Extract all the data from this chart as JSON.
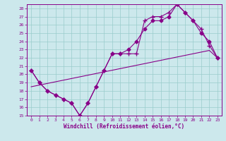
{
  "xlabel": "Windchill (Refroidissement éolien,°C)",
  "bg_color": "#cce8ec",
  "line_color": "#880088",
  "grid_color": "#99cccc",
  "xlim": [
    -0.5,
    23.5
  ],
  "ylim": [
    15,
    28.5
  ],
  "xticks": [
    0,
    1,
    2,
    3,
    4,
    5,
    6,
    7,
    8,
    9,
    10,
    11,
    12,
    13,
    14,
    15,
    16,
    17,
    18,
    19,
    20,
    21,
    22,
    23
  ],
  "yticks": [
    15,
    16,
    17,
    18,
    19,
    20,
    21,
    22,
    23,
    24,
    25,
    26,
    27,
    28
  ],
  "line1_x": [
    0,
    1,
    2,
    3,
    4,
    5,
    6,
    7,
    8,
    9,
    10,
    11,
    12,
    13,
    14,
    15,
    16,
    17,
    18,
    19,
    20,
    21,
    22,
    23
  ],
  "line1_y": [
    20.5,
    19.0,
    18.0,
    17.5,
    17.0,
    16.5,
    15.0,
    16.5,
    18.5,
    20.5,
    22.5,
    22.5,
    23.0,
    24.0,
    25.5,
    26.5,
    26.5,
    27.0,
    28.5,
    27.5,
    26.5,
    25.0,
    24.0,
    22.0
  ],
  "line2_x": [
    0,
    1,
    2,
    3,
    4,
    5,
    6,
    7,
    8,
    9,
    10,
    11,
    12,
    13,
    14,
    15,
    16,
    17,
    18,
    19,
    20,
    21,
    22,
    23
  ],
  "line2_y": [
    20.5,
    19.0,
    18.0,
    17.5,
    17.0,
    16.5,
    15.0,
    16.5,
    18.5,
    20.5,
    22.5,
    22.5,
    22.5,
    22.5,
    26.5,
    27.0,
    27.0,
    27.5,
    28.5,
    27.5,
    26.5,
    25.5,
    23.5,
    22.0
  ],
  "line3_x": [
    0,
    1,
    2,
    3,
    4,
    5,
    6,
    7,
    8,
    9,
    10,
    11,
    12,
    13,
    14,
    15,
    16,
    17,
    18,
    19,
    20,
    21,
    22,
    23
  ],
  "line3_y": [
    18.5,
    18.7,
    18.9,
    19.1,
    19.3,
    19.5,
    19.7,
    19.9,
    20.1,
    20.3,
    20.5,
    20.7,
    20.9,
    21.1,
    21.3,
    21.5,
    21.7,
    21.9,
    22.1,
    22.3,
    22.5,
    22.7,
    22.9,
    22.0
  ],
  "marker_diamond": "D",
  "marker_plus": "+",
  "markersize_d": 2.5,
  "markersize_p": 4.0
}
